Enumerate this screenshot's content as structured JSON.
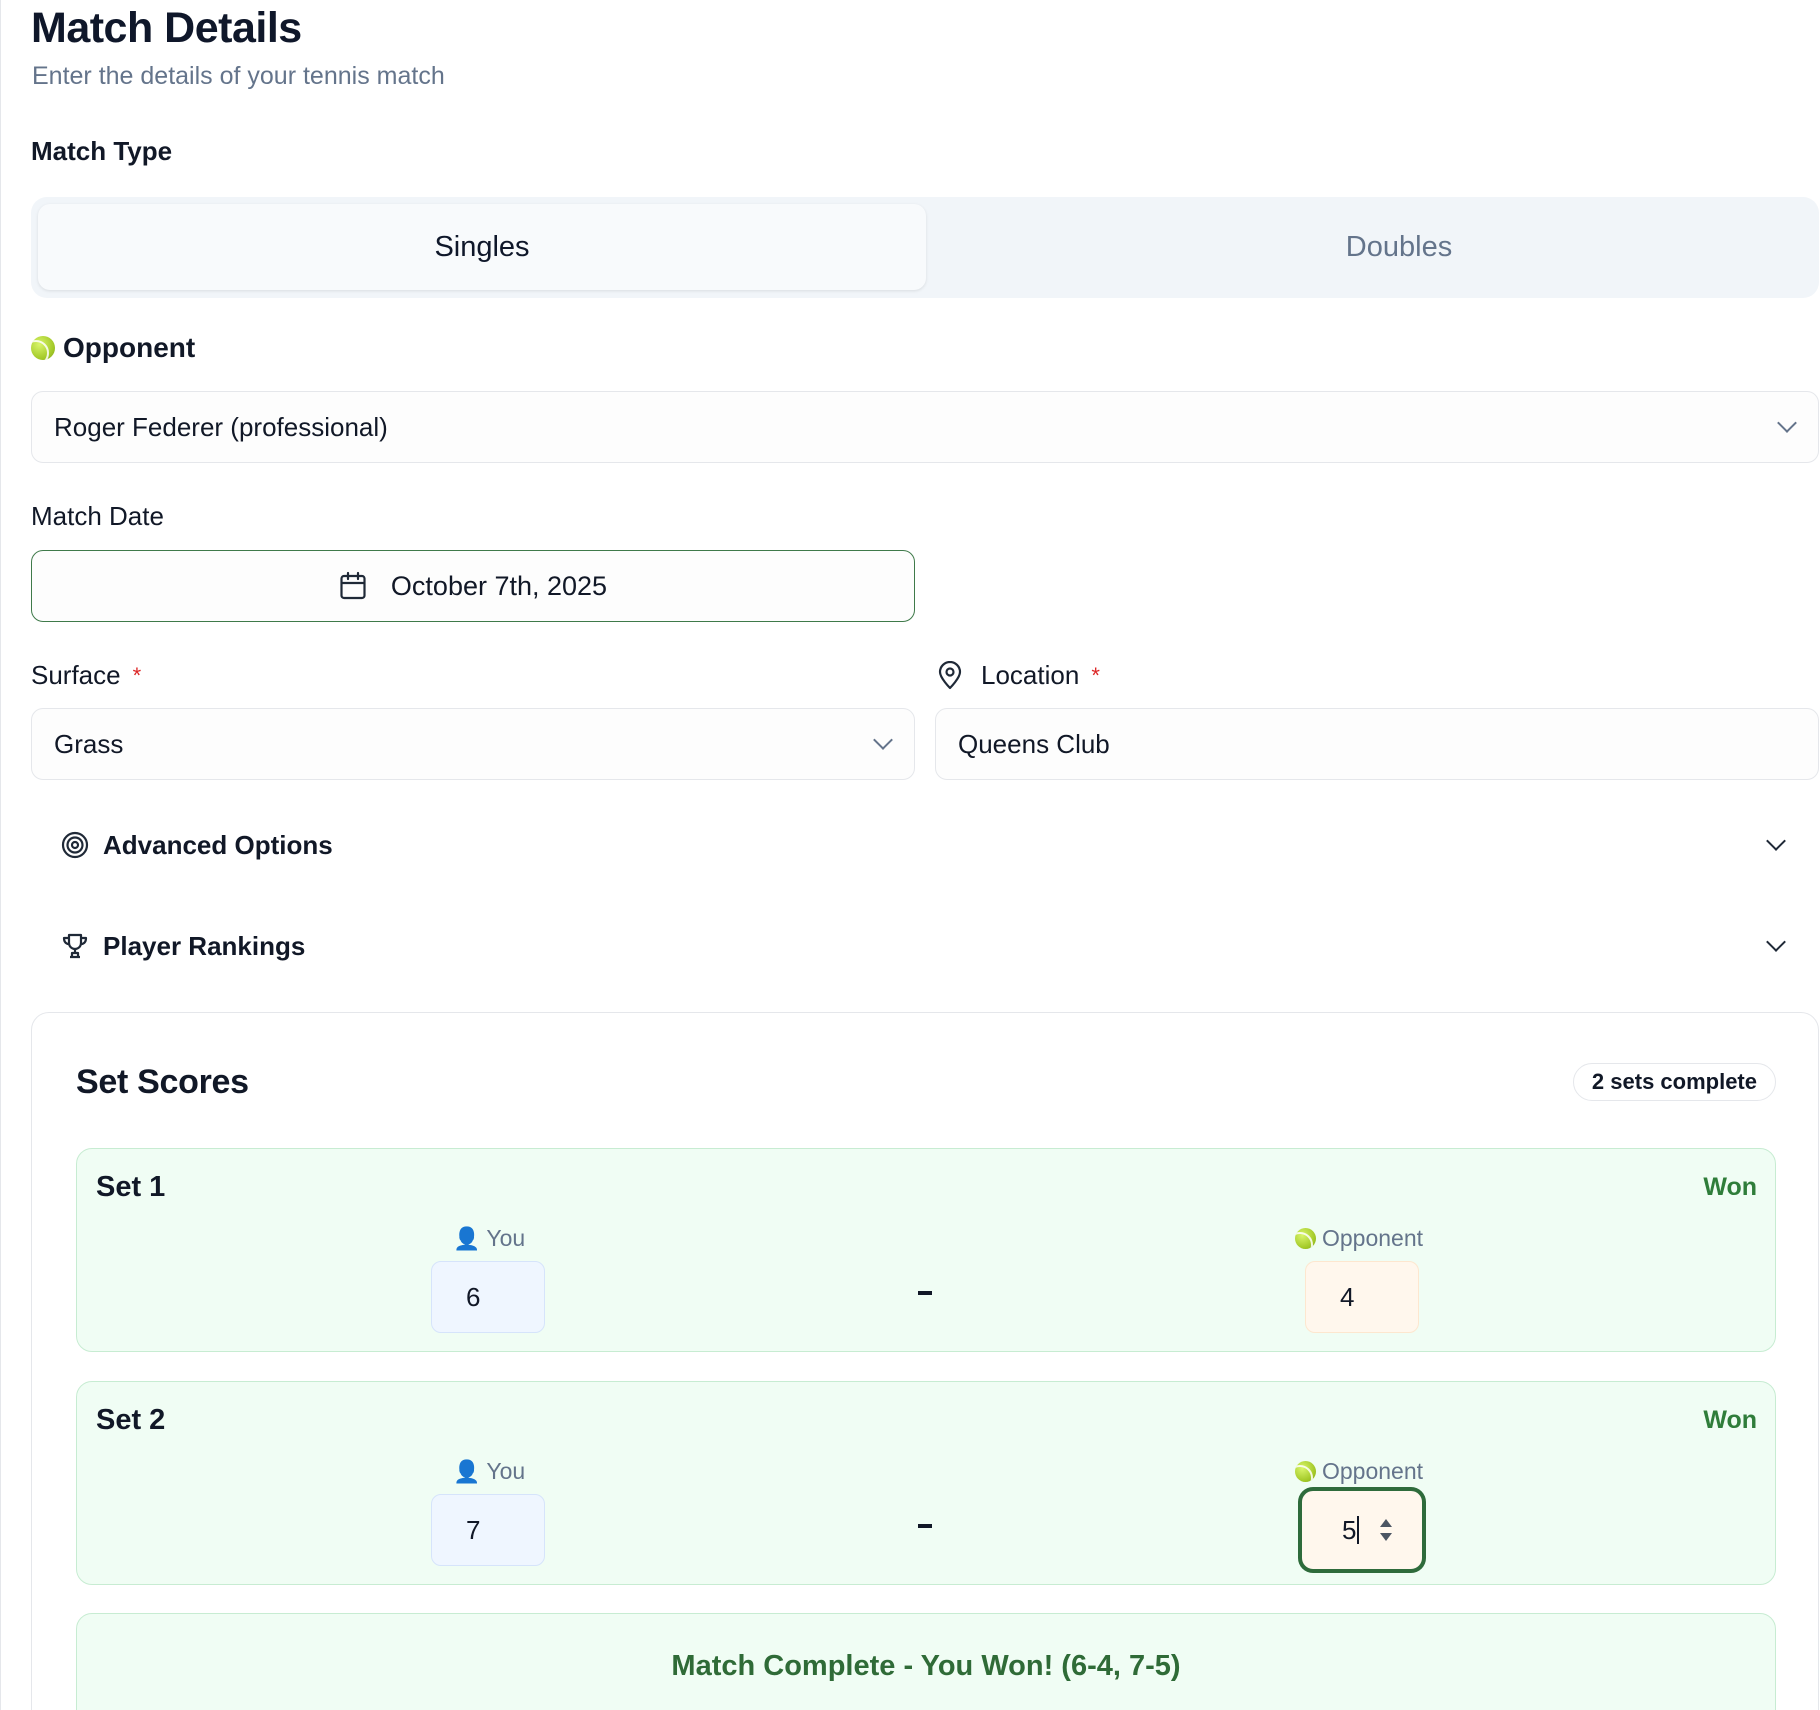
{
  "header": {
    "title": "Match Details",
    "subtitle": "Enter the details of your tennis match"
  },
  "match_type": {
    "label": "Match Type",
    "options": [
      "Singles",
      "Doubles"
    ],
    "selected": "Singles"
  },
  "opponent": {
    "label": "Opponent",
    "value": "Roger Federer (professional)"
  },
  "match_date": {
    "label": "Match Date",
    "value": "October 7th, 2025"
  },
  "surface": {
    "label": "Surface",
    "required_mark": "*",
    "value": "Grass"
  },
  "location": {
    "label": "Location",
    "required_mark": "*",
    "value": "Queens Club"
  },
  "sections": {
    "advanced": "Advanced Options",
    "rankings": "Player Rankings"
  },
  "set_scores": {
    "title": "Set Scores",
    "badge": "2 sets complete",
    "you_label": "You",
    "opponent_label": "Opponent",
    "separator": "-",
    "sets": [
      {
        "title": "Set 1",
        "result": "Won",
        "you": "6",
        "opponent": "4"
      },
      {
        "title": "Set 2",
        "result": "Won",
        "you": "7",
        "opponent": "5"
      }
    ],
    "summary": "Match Complete - You Won! (6-4, 7-5)"
  },
  "colors": {
    "accent_green": "#2f7d3a",
    "focus_ring": "#2e6b3b",
    "required": "#dc2626",
    "you_bg": "#eff6ff",
    "opponent_bg": "#fff7ed",
    "set_won_bg": "#f0fdf4"
  },
  "icons": {
    "opponent": "tennis-ball-icon",
    "date": "calendar-icon",
    "location": "map-pin-icon",
    "advanced": "target-icon",
    "rankings": "trophy-icon",
    "you": "person-icon"
  }
}
